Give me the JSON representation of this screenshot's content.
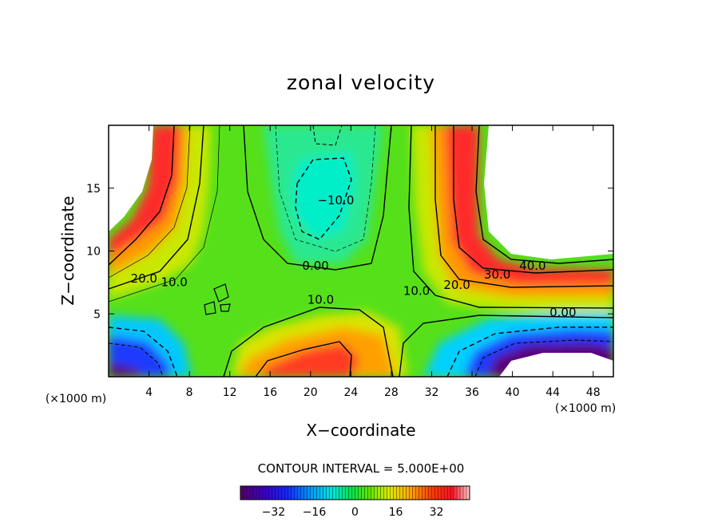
{
  "chart_data": {
    "type": "heatmap",
    "title": "zonal velocity",
    "xlabel": "X−coordinate",
    "ylabel": "Z−coordinate",
    "x_units": "(×1000 m)",
    "z_units": "(×1000 m)",
    "xlim": [
      0,
      50
    ],
    "ylim": [
      0,
      20
    ],
    "x_ticks": [
      "4",
      "8",
      "12",
      "16",
      "20",
      "24",
      "28",
      "32",
      "36",
      "40",
      "44",
      "48"
    ],
    "y_ticks": [
      "5",
      "10",
      "15"
    ],
    "contour_interval_text": "CONTOUR INTERVAL = 5.000E+00",
    "contour_labels": [
      {
        "text": "20.0",
        "x": 3.5,
        "z": 7.5
      },
      {
        "text": "10.0",
        "x": 6.5,
        "z": 7.2
      },
      {
        "text": "0.00",
        "x": 20.5,
        "z": 8.5
      },
      {
        "text": "−10.0",
        "x": 22.5,
        "z": 13.7
      },
      {
        "text": "10.0",
        "x": 21.0,
        "z": 5.8
      },
      {
        "text": "10.0",
        "x": 30.5,
        "z": 6.5
      },
      {
        "text": "20.0",
        "x": 34.5,
        "z": 7.0
      },
      {
        "text": "30.0",
        "x": 38.5,
        "z": 7.8
      },
      {
        "text": "40.0",
        "x": 42.0,
        "z": 8.5
      },
      {
        "text": "0.00",
        "x": 45.0,
        "z": 4.8
      }
    ],
    "colorbar": {
      "ticks": [
        "−32",
        "−16",
        "0",
        "16",
        "32"
      ],
      "range": [
        -45,
        45
      ]
    },
    "colors": {
      "missing": "#ffffff",
      "min": "#5a007a",
      "zero": "#00ee44",
      "max": "#ffb0b0"
    },
    "approx_field": {
      "note": "",
      "centers": [
        {
          "x": 22.0,
          "z": 14.0,
          "value": -12
        },
        {
          "x": 21.0,
          "z": 1.5,
          "value": 30
        },
        {
          "x": 44.0,
          "z": 0.8,
          "value": -35
        },
        {
          "x": 1.5,
          "z": 0.5,
          "value": -25
        }
      ]
    }
  }
}
